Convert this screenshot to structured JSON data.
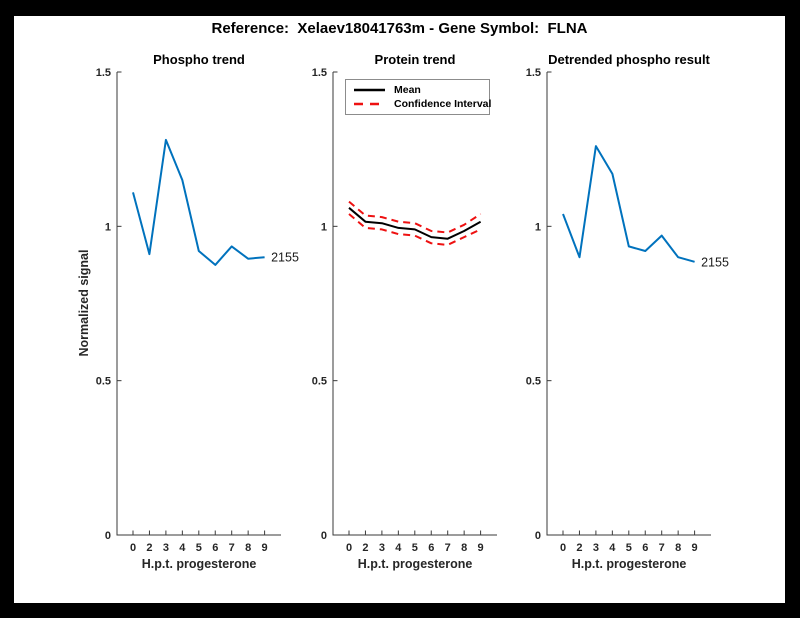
{
  "figure": {
    "title": "Reference:  Xelaev18041763m - Gene Symbol:  FLNA",
    "frame_color": "#000000",
    "background": "#ffffff"
  },
  "axis_style": {
    "spine_color": "#3a3a3a",
    "tick_label_color": "#262626",
    "accent_blue": "#0072BD",
    "accent_red": "#EE1111"
  },
  "chart_data": [
    {
      "type": "line",
      "title": "Phospho trend",
      "xlabel": "H.p.t. progesterone",
      "ylabel": "Normalized signal",
      "x": [
        0,
        2,
        3,
        4,
        5,
        6,
        7,
        8,
        9
      ],
      "xticklabels": [
        "0",
        "2",
        "3",
        "4",
        "5",
        "6",
        "7",
        "8",
        "9"
      ],
      "yticks": [
        0,
        0.5,
        1,
        1.5
      ],
      "yticklabels": [
        "0",
        "0.5",
        "1",
        "1.5"
      ],
      "ylim": [
        0,
        1.5
      ],
      "grid": false,
      "legend": null,
      "series": [
        {
          "name": "2155",
          "role": "phospho-signal",
          "color": "#0072BD",
          "style": "solid",
          "values": [
            1.11,
            0.91,
            1.28,
            1.15,
            0.92,
            0.875,
            0.935,
            0.895,
            0.9
          ]
        }
      ],
      "end_label": "2155"
    },
    {
      "type": "line",
      "title": "Protein trend",
      "xlabel": "H.p.t. progesterone",
      "ylabel": "",
      "x": [
        0,
        2,
        3,
        4,
        5,
        6,
        7,
        8,
        9
      ],
      "xticklabels": [
        "0",
        "2",
        "3",
        "4",
        "5",
        "6",
        "7",
        "8",
        "9"
      ],
      "yticks": [
        0,
        0.5,
        1,
        1.5
      ],
      "yticklabels": [
        "0",
        "0.5",
        "1",
        "1.5"
      ],
      "ylim": [
        0,
        1.5
      ],
      "grid": false,
      "legend": {
        "position": "northwest",
        "entries": [
          {
            "label": "Mean",
            "color": "#000000",
            "style": "solid"
          },
          {
            "label": "Confidence Interval",
            "color": "#EE1111",
            "style": "dashed"
          }
        ]
      },
      "series": [
        {
          "name": "Mean",
          "role": "mean",
          "color": "#000000",
          "style": "solid",
          "values": [
            1.06,
            1.015,
            1.01,
            0.995,
            0.99,
            0.965,
            0.96,
            0.985,
            1.015
          ]
        },
        {
          "name": "Confidence Interval",
          "role": "ci-upper",
          "color": "#EE1111",
          "style": "dashed",
          "values": [
            1.08,
            1.035,
            1.03,
            1.015,
            1.01,
            0.985,
            0.98,
            1.005,
            1.04
          ]
        },
        {
          "name": "Confidence Interval",
          "role": "ci-lower",
          "color": "#EE1111",
          "style": "dashed",
          "values": [
            1.04,
            0.995,
            0.99,
            0.975,
            0.97,
            0.945,
            0.94,
            0.965,
            0.99
          ]
        }
      ],
      "end_label": null
    },
    {
      "type": "line",
      "title": "Detrended phospho result",
      "xlabel": "H.p.t. progesterone",
      "ylabel": "",
      "x": [
        0,
        2,
        3,
        4,
        5,
        6,
        7,
        8,
        9
      ],
      "xticklabels": [
        "0",
        "2",
        "3",
        "4",
        "5",
        "6",
        "7",
        "8",
        "9"
      ],
      "yticks": [
        0,
        0.5,
        1,
        1.5
      ],
      "yticklabels": [
        "0",
        "0.5",
        "1",
        "1.5"
      ],
      "ylim": [
        0,
        1.5
      ],
      "grid": false,
      "legend": null,
      "series": [
        {
          "name": "2155",
          "role": "detrended-signal",
          "color": "#0072BD",
          "style": "solid",
          "values": [
            1.04,
            0.9,
            1.26,
            1.17,
            0.935,
            0.92,
            0.97,
            0.9,
            0.885
          ]
        }
      ],
      "end_label": "2155"
    }
  ]
}
